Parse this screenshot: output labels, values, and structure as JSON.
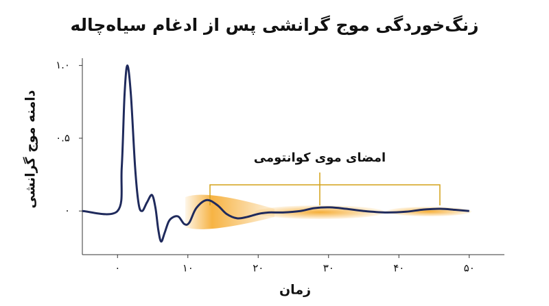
{
  "chart_data": {
    "type": "line",
    "title": "زنگ‌خوردگی موج گرانشی پس از ادغام سیاه‌چاله",
    "x_label": "زمان",
    "y_label": "دامنه موج گرانشی",
    "annotation": "امضای موی کوانتومی",
    "xlim": [
      -5,
      55
    ],
    "ylim": [
      -0.3,
      1.05
    ],
    "xticks": [
      {
        "value": 0,
        "label": "۰"
      },
      {
        "value": 10,
        "label": "۱۰"
      },
      {
        "value": 20,
        "label": "۲۰"
      },
      {
        "value": 30,
        "label": "۳۰"
      },
      {
        "value": 40,
        "label": "۴۰"
      },
      {
        "value": 50,
        "label": "۵۰"
      }
    ],
    "yticks": [
      {
        "value": 0,
        "label": "۰"
      },
      {
        "value": 0.5,
        "label": "۰.۵"
      },
      {
        "value": 1.0,
        "label": "۱.۰"
      }
    ],
    "series": [
      {
        "color": "#1f2a5c",
        "x": [
          -5,
          0,
          0.6,
          1.0,
          1.4,
          1.9,
          2.5,
          3.0,
          3.5,
          4.2,
          4.9,
          5.4,
          5.8,
          6.2,
          6.7,
          7.3,
          8.0,
          8.7,
          9.5,
          10.2,
          11.2,
          12.7,
          14.2,
          15.5,
          17,
          18.5,
          20,
          21.5,
          23.5,
          26,
          28,
          30.2,
          32.5,
          35,
          38,
          41,
          43.5,
          45.9,
          48,
          50
        ],
        "values": [
          0,
          0,
          0.3,
          0.8,
          1.0,
          0.8,
          0.3,
          0.05,
          0.0,
          0.06,
          0.11,
          0.02,
          -0.13,
          -0.21,
          -0.15,
          -0.07,
          -0.04,
          -0.04,
          -0.09,
          -0.08,
          0.02,
          0.075,
          0.04,
          -0.02,
          -0.05,
          -0.04,
          -0.02,
          -0.01,
          -0.01,
          0.0,
          0.02,
          0.025,
          0.015,
          0.0,
          -0.01,
          -0.005,
          0.01,
          0.015,
          0.008,
          0
        ]
      }
    ]
  }
}
